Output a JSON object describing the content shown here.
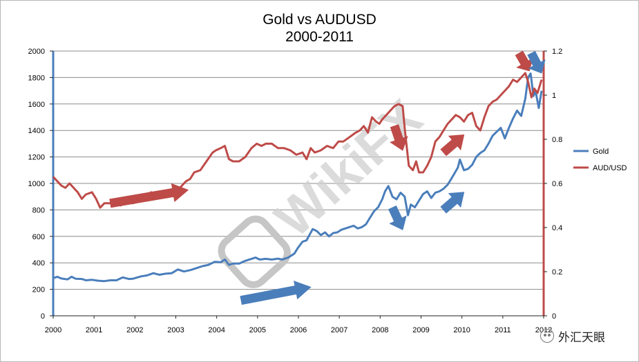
{
  "title_line1": "Gold vs AUDUSD",
  "title_line2": "2000-2011",
  "brand": {
    "text": "外汇天眼",
    "icon": "wechat-icon"
  },
  "watermark": "WikiFX",
  "colors": {
    "gold": "#4a7ebb",
    "aud": "#be4b48",
    "grid": "#8c8c8c",
    "arrow_blue": "#4a7ebb",
    "arrow_red": "#be4b48"
  },
  "chart_data": {
    "type": "line",
    "title": "Gold vs AUDUSD 2000-2011",
    "x_ticks": [
      "2000",
      "2001",
      "2002",
      "2003",
      "2004",
      "2005",
      "2006",
      "2007",
      "2008",
      "2009",
      "2010",
      "2011",
      "2012"
    ],
    "xlim": [
      2000,
      2012
    ],
    "ylim_left": [
      0,
      2000
    ],
    "y_ticks_left": [
      "0",
      "200",
      "400",
      "600",
      "800",
      "1000",
      "1200",
      "1400",
      "1600",
      "1800",
      "2000"
    ],
    "ylim_right": [
      0,
      1.2
    ],
    "y_ticks_right": [
      "0",
      "0.2",
      "0.4",
      "0.6",
      "0.8",
      "1",
      "1.2"
    ],
    "grid": true,
    "legend_position": "right",
    "series": [
      {
        "name": "Gold",
        "axis": "left",
        "color": "#4a7ebb",
        "points": [
          [
            2000.0,
            285
          ],
          [
            2000.1,
            295
          ],
          [
            2000.2,
            282
          ],
          [
            2000.35,
            275
          ],
          [
            2000.45,
            295
          ],
          [
            2000.55,
            280
          ],
          [
            2000.7,
            278
          ],
          [
            2000.8,
            268
          ],
          [
            2000.95,
            272
          ],
          [
            2001.1,
            265
          ],
          [
            2001.25,
            262
          ],
          [
            2001.4,
            268
          ],
          [
            2001.55,
            268
          ],
          [
            2001.7,
            290
          ],
          [
            2001.85,
            278
          ],
          [
            2001.95,
            280
          ],
          [
            2002.15,
            298
          ],
          [
            2002.3,
            305
          ],
          [
            2002.45,
            322
          ],
          [
            2002.6,
            310
          ],
          [
            2002.75,
            318
          ],
          [
            2002.9,
            322
          ],
          [
            2003.05,
            350
          ],
          [
            2003.2,
            335
          ],
          [
            2003.35,
            345
          ],
          [
            2003.5,
            360
          ],
          [
            2003.65,
            375
          ],
          [
            2003.8,
            385
          ],
          [
            2003.95,
            408
          ],
          [
            2004.1,
            405
          ],
          [
            2004.2,
            425
          ],
          [
            2004.3,
            385
          ],
          [
            2004.4,
            395
          ],
          [
            2004.55,
            395
          ],
          [
            2004.7,
            415
          ],
          [
            2004.85,
            430
          ],
          [
            2004.95,
            440
          ],
          [
            2005.05,
            425
          ],
          [
            2005.2,
            430
          ],
          [
            2005.35,
            425
          ],
          [
            2005.5,
            432
          ],
          [
            2005.6,
            425
          ],
          [
            2005.75,
            440
          ],
          [
            2005.9,
            470
          ],
          [
            2005.98,
            510
          ],
          [
            2006.1,
            560
          ],
          [
            2006.2,
            570
          ],
          [
            2006.25,
            600
          ],
          [
            2006.35,
            655
          ],
          [
            2006.45,
            640
          ],
          [
            2006.55,
            610
          ],
          [
            2006.65,
            630
          ],
          [
            2006.75,
            600
          ],
          [
            2006.85,
            625
          ],
          [
            2006.95,
            630
          ],
          [
            2007.05,
            650
          ],
          [
            2007.2,
            665
          ],
          [
            2007.35,
            680
          ],
          [
            2007.45,
            660
          ],
          [
            2007.55,
            670
          ],
          [
            2007.65,
            690
          ],
          [
            2007.75,
            740
          ],
          [
            2007.85,
            790
          ],
          [
            2007.95,
            820
          ],
          [
            2008.05,
            880
          ],
          [
            2008.12,
            940
          ],
          [
            2008.2,
            980
          ],
          [
            2008.3,
            900
          ],
          [
            2008.4,
            880
          ],
          [
            2008.5,
            930
          ],
          [
            2008.6,
            900
          ],
          [
            2008.68,
            760
          ],
          [
            2008.75,
            840
          ],
          [
            2008.85,
            820
          ],
          [
            2008.95,
            870
          ],
          [
            2009.05,
            920
          ],
          [
            2009.15,
            940
          ],
          [
            2009.25,
            890
          ],
          [
            2009.35,
            930
          ],
          [
            2009.45,
            940
          ],
          [
            2009.55,
            960
          ],
          [
            2009.65,
            990
          ],
          [
            2009.75,
            1040
          ],
          [
            2009.9,
            1120
          ],
          [
            2009.95,
            1180
          ],
          [
            2010.05,
            1100
          ],
          [
            2010.15,
            1110
          ],
          [
            2010.25,
            1140
          ],
          [
            2010.35,
            1200
          ],
          [
            2010.45,
            1230
          ],
          [
            2010.55,
            1250
          ],
          [
            2010.65,
            1300
          ],
          [
            2010.75,
            1360
          ],
          [
            2010.85,
            1390
          ],
          [
            2010.95,
            1420
          ],
          [
            2011.05,
            1340
          ],
          [
            2011.15,
            1420
          ],
          [
            2011.25,
            1490
          ],
          [
            2011.35,
            1550
          ],
          [
            2011.45,
            1510
          ],
          [
            2011.55,
            1640
          ],
          [
            2011.62,
            1800
          ],
          [
            2011.68,
            1830
          ],
          [
            2011.75,
            1660
          ],
          [
            2011.8,
            1700
          ],
          [
            2011.88,
            1570
          ],
          [
            2011.95,
            1700
          ]
        ]
      },
      {
        "name": "AUD/USD",
        "axis": "right",
        "color": "#be4b48",
        "points": [
          [
            2000.0,
            0.63
          ],
          [
            2000.1,
            0.61
          ],
          [
            2000.2,
            0.59
          ],
          [
            2000.3,
            0.58
          ],
          [
            2000.4,
            0.6
          ],
          [
            2000.5,
            0.58
          ],
          [
            2000.6,
            0.56
          ],
          [
            2000.7,
            0.53
          ],
          [
            2000.8,
            0.55
          ],
          [
            2000.95,
            0.56
          ],
          [
            2001.05,
            0.53
          ],
          [
            2001.15,
            0.49
          ],
          [
            2001.25,
            0.51
          ],
          [
            2001.4,
            0.51
          ],
          [
            2001.55,
            0.52
          ],
          [
            2001.65,
            0.5
          ],
          [
            2001.8,
            0.52
          ],
          [
            2001.95,
            0.51
          ],
          [
            2002.1,
            0.52
          ],
          [
            2002.2,
            0.53
          ],
          [
            2002.3,
            0.55
          ],
          [
            2002.4,
            0.56
          ],
          [
            2002.55,
            0.54
          ],
          [
            2002.7,
            0.55
          ],
          [
            2002.85,
            0.56
          ],
          [
            2002.95,
            0.56
          ],
          [
            2003.1,
            0.58
          ],
          [
            2003.25,
            0.61
          ],
          [
            2003.35,
            0.62
          ],
          [
            2003.45,
            0.65
          ],
          [
            2003.6,
            0.66
          ],
          [
            2003.75,
            0.7
          ],
          [
            2003.9,
            0.74
          ],
          [
            2003.98,
            0.75
          ],
          [
            2004.1,
            0.76
          ],
          [
            2004.2,
            0.77
          ],
          [
            2004.3,
            0.71
          ],
          [
            2004.4,
            0.7
          ],
          [
            2004.55,
            0.7
          ],
          [
            2004.7,
            0.72
          ],
          [
            2004.85,
            0.76
          ],
          [
            2004.98,
            0.78
          ],
          [
            2005.1,
            0.77
          ],
          [
            2005.2,
            0.78
          ],
          [
            2005.35,
            0.78
          ],
          [
            2005.5,
            0.76
          ],
          [
            2005.65,
            0.76
          ],
          [
            2005.8,
            0.75
          ],
          [
            2005.95,
            0.73
          ],
          [
            2006.1,
            0.74
          ],
          [
            2006.2,
            0.71
          ],
          [
            2006.3,
            0.76
          ],
          [
            2006.4,
            0.74
          ],
          [
            2006.55,
            0.75
          ],
          [
            2006.7,
            0.77
          ],
          [
            2006.85,
            0.76
          ],
          [
            2006.98,
            0.79
          ],
          [
            2007.1,
            0.79
          ],
          [
            2007.25,
            0.81
          ],
          [
            2007.4,
            0.83
          ],
          [
            2007.5,
            0.84
          ],
          [
            2007.6,
            0.86
          ],
          [
            2007.7,
            0.83
          ],
          [
            2007.8,
            0.9
          ],
          [
            2007.9,
            0.88
          ],
          [
            2007.98,
            0.87
          ],
          [
            2008.05,
            0.89
          ],
          [
            2008.15,
            0.91
          ],
          [
            2008.25,
            0.93
          ],
          [
            2008.35,
            0.95
          ],
          [
            2008.45,
            0.96
          ],
          [
            2008.55,
            0.95
          ],
          [
            2008.6,
            0.85
          ],
          [
            2008.7,
            0.68
          ],
          [
            2008.8,
            0.66
          ],
          [
            2008.88,
            0.7
          ],
          [
            2008.95,
            0.65
          ],
          [
            2009.05,
            0.65
          ],
          [
            2009.15,
            0.68
          ],
          [
            2009.25,
            0.72
          ],
          [
            2009.35,
            0.79
          ],
          [
            2009.45,
            0.81
          ],
          [
            2009.55,
            0.84
          ],
          [
            2009.65,
            0.87
          ],
          [
            2009.75,
            0.89
          ],
          [
            2009.85,
            0.91
          ],
          [
            2009.95,
            0.9
          ],
          [
            2010.05,
            0.88
          ],
          [
            2010.15,
            0.91
          ],
          [
            2010.25,
            0.92
          ],
          [
            2010.35,
            0.86
          ],
          [
            2010.45,
            0.84
          ],
          [
            2010.55,
            0.9
          ],
          [
            2010.65,
            0.95
          ],
          [
            2010.75,
            0.97
          ],
          [
            2010.85,
            0.98
          ],
          [
            2010.95,
            1.0
          ],
          [
            2011.05,
            1.02
          ],
          [
            2011.15,
            1.04
          ],
          [
            2011.25,
            1.07
          ],
          [
            2011.35,
            1.06
          ],
          [
            2011.45,
            1.08
          ],
          [
            2011.55,
            1.1
          ],
          [
            2011.62,
            1.06
          ],
          [
            2011.7,
            0.99
          ],
          [
            2011.77,
            1.03
          ],
          [
            2011.85,
            1.01
          ],
          [
            2011.95,
            1.07
          ]
        ]
      }
    ]
  },
  "arrows": [
    {
      "color": "#be4b48",
      "x1": 2001.4,
      "y1": 0.51,
      "x2": 2003.3,
      "y2": 0.57
    },
    {
      "color": "#4a7ebb",
      "x1": 2004.6,
      "y1": 0.07,
      "x2": 2006.3,
      "y2": 0.13
    },
    {
      "color": "#be4b48",
      "x1": 2008.35,
      "y1": 0.86,
      "x2": 2008.55,
      "y2": 0.75
    },
    {
      "color": "#4a7ebb",
      "x1": 2008.3,
      "y1": 0.49,
      "x2": 2008.55,
      "y2": 0.39
    },
    {
      "color": "#be4b48",
      "x1": 2009.55,
      "y1": 0.74,
      "x2": 2010.05,
      "y2": 0.82
    },
    {
      "color": "#4a7ebb",
      "x1": 2009.55,
      "y1": 0.48,
      "x2": 2010.05,
      "y2": 0.56
    },
    {
      "color": "#be4b48",
      "x1": 2011.4,
      "y1": 1.19,
      "x2": 2011.65,
      "y2": 1.11
    },
    {
      "color": "#4a7ebb",
      "x1": 2011.7,
      "y1": 1.19,
      "x2": 2011.95,
      "y2": 1.1
    }
  ]
}
